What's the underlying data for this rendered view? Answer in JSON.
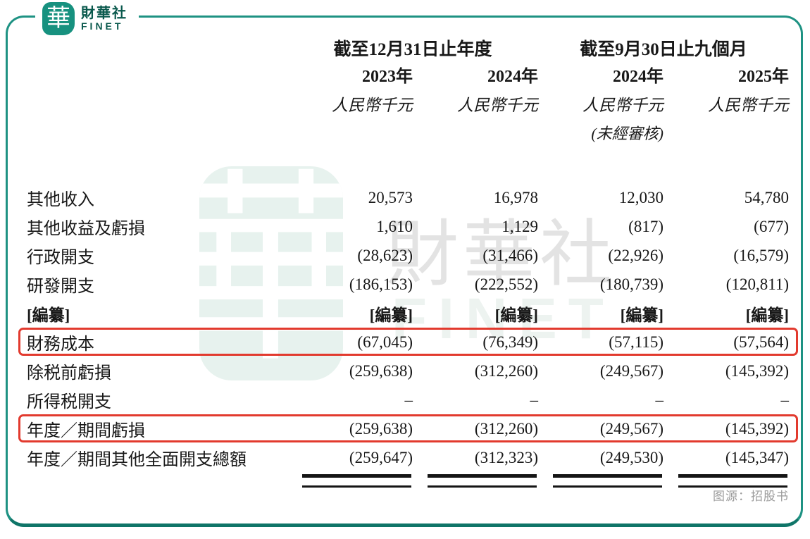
{
  "logo": {
    "mark": "華",
    "name": "財華社",
    "subname": "FINET"
  },
  "watermark": {
    "mark": "華",
    "text": "財華社",
    "subtext": "FINET"
  },
  "source_note": "图源：招股书",
  "colors": {
    "brand_teal": "#17917f",
    "dark_teal": "#0a594d",
    "frame_teal": "#1e9283",
    "highlight_red": "#e23a2e",
    "watermark_green": "#e7f2ee",
    "watermark_gray": "#e3e3e3"
  },
  "table": {
    "col_groups": [
      {
        "label": "截至12月31日止年度",
        "cols": [
          "2023年",
          "2024年"
        ]
      },
      {
        "label": "截至9月30日止九個月",
        "cols": [
          "2024年",
          "2025年"
        ]
      }
    ],
    "unit_label": "人民幣千元",
    "unaudited_label": "(未經審核)",
    "unaudited_col_index": 2,
    "rows": [
      {
        "label": "其他收入",
        "values": [
          "20,573",
          "16,978",
          "12,030",
          "54,780"
        ]
      },
      {
        "label": "其他收益及虧損",
        "values": [
          "1,610",
          "1,129",
          "(817)",
          "(677)"
        ]
      },
      {
        "label": "行政開支",
        "values": [
          "(28,623)",
          "(31,466)",
          "(22,926)",
          "(16,579)"
        ]
      },
      {
        "label": "研發開支",
        "values": [
          "(186,153)",
          "(222,552)",
          "(180,739)",
          "(120,811)"
        ]
      },
      {
        "label": "[編纂]",
        "values": [
          "[編纂]",
          "[編纂]",
          "[編纂]",
          "[編纂]"
        ],
        "bold": true
      },
      {
        "label": "財務成本",
        "values": [
          "(67,045)",
          "(76,349)",
          "(57,115)",
          "(57,564)"
        ],
        "highlighted": true
      },
      {
        "label": "除税前虧損",
        "values": [
          "(259,638)",
          "(312,260)",
          "(249,567)",
          "(145,392)"
        ]
      },
      {
        "label": "所得税開支",
        "values": [
          "–",
          "–",
          "–",
          "–"
        ]
      },
      {
        "label": "年度／期間虧損",
        "values": [
          "(259,638)",
          "(312,260)",
          "(249,567)",
          "(145,392)"
        ],
        "highlighted": true
      },
      {
        "label": "年度／期間其他全面開支總額",
        "values": [
          "(259,647)",
          "(312,323)",
          "(249,530)",
          "(145,347)"
        ],
        "double_underline": true
      }
    ]
  }
}
